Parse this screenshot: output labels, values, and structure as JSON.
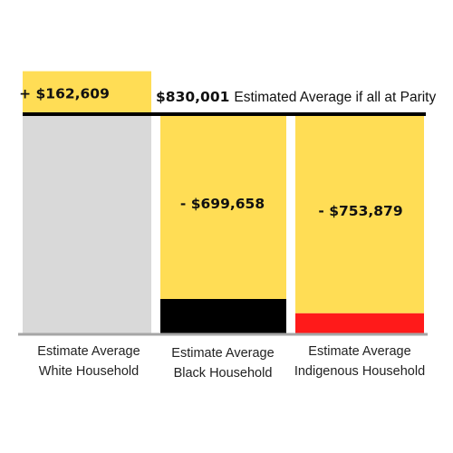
{
  "chart_data": {
    "type": "bar",
    "categories": [
      [
        "Estimate Average",
        "White Household"
      ],
      [
        "Estimate Average",
        "Black Household"
      ],
      [
        "Estimate Average",
        "Indigenous Household"
      ]
    ],
    "parity": {
      "value": 830001,
      "value_label": "$830,001",
      "text": "Estimated Average if all at Parity"
    },
    "bars": [
      {
        "value": 992610,
        "gap": 162609,
        "gap_label": "+ $162,609",
        "fill_color": "#d9d9d9",
        "gap_color": "#ffdd55"
      },
      {
        "value": 130343,
        "gap": -699658,
        "gap_label": "- $699,658",
        "fill_color": "#000000",
        "gap_color": "#ffdd55"
      },
      {
        "value": 76122,
        "gap": -753879,
        "gap_label": "- $753,879",
        "fill_color": "#ff1a1a",
        "gap_color": "#ffdd55"
      }
    ],
    "colors": {
      "axis": "#a6a6a6",
      "parity_line": "#000000"
    }
  }
}
